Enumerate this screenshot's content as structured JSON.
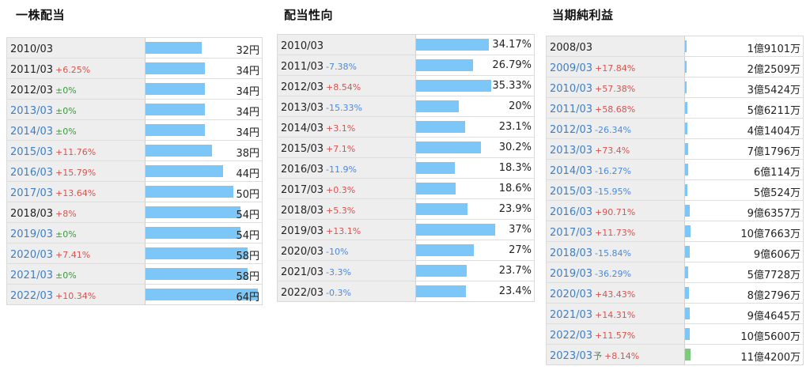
{
  "colors": {
    "bar": "#7cc6f8",
    "forecast_bar": "#7dc97d",
    "up": "#d9534f",
    "down": "#4a8ad9",
    "flat": "#3a9a3a",
    "link": "#3d7fc4"
  },
  "panels": [
    {
      "id": "dividend",
      "title": "一株配当",
      "scale_max": 64,
      "rows": [
        {
          "year": "2010/03",
          "change": "",
          "dir": "",
          "link": false,
          "value": "32円",
          "num": 32
        },
        {
          "year": "2011/03",
          "change": "+6.25%",
          "dir": "up",
          "link": false,
          "value": "34円",
          "num": 34
        },
        {
          "year": "2012/03",
          "change": "±0%",
          "dir": "flat",
          "link": false,
          "value": "34円",
          "num": 34
        },
        {
          "year": "2013/03",
          "change": "±0%",
          "dir": "flat",
          "link": true,
          "value": "34円",
          "num": 34
        },
        {
          "year": "2014/03",
          "change": "±0%",
          "dir": "flat",
          "link": true,
          "value": "34円",
          "num": 34
        },
        {
          "year": "2015/03",
          "change": "+11.76%",
          "dir": "up",
          "link": true,
          "value": "38円",
          "num": 38
        },
        {
          "year": "2016/03",
          "change": "+15.79%",
          "dir": "up",
          "link": true,
          "value": "44円",
          "num": 44
        },
        {
          "year": "2017/03",
          "change": "+13.64%",
          "dir": "up",
          "link": true,
          "value": "50円",
          "num": 50
        },
        {
          "year": "2018/03",
          "change": "+8%",
          "dir": "up",
          "link": false,
          "value": "54円",
          "num": 54
        },
        {
          "year": "2019/03",
          "change": "±0%",
          "dir": "flat",
          "link": true,
          "value": "54円",
          "num": 54
        },
        {
          "year": "2020/03",
          "change": "+7.41%",
          "dir": "up",
          "link": true,
          "value": "58円",
          "num": 58
        },
        {
          "year": "2021/03",
          "change": "±0%",
          "dir": "flat",
          "link": true,
          "value": "58円",
          "num": 58
        },
        {
          "year": "2022/03",
          "change": "+10.34%",
          "dir": "up",
          "link": true,
          "value": "64円",
          "num": 64
        }
      ]
    },
    {
      "id": "payout",
      "title": "配当性向",
      "scale_max": 50,
      "rows": [
        {
          "year": "2010/03",
          "change": "",
          "dir": "",
          "link": false,
          "value": "34.17%",
          "num": 34.17
        },
        {
          "year": "2011/03",
          "change": "-7.38%",
          "dir": "down",
          "link": false,
          "value": "26.79%",
          "num": 26.79
        },
        {
          "year": "2012/03",
          "change": "+8.54%",
          "dir": "up",
          "link": false,
          "value": "35.33%",
          "num": 35.33
        },
        {
          "year": "2013/03",
          "change": "-15.33%",
          "dir": "down",
          "link": false,
          "value": "20%",
          "num": 20
        },
        {
          "year": "2014/03",
          "change": "+3.1%",
          "dir": "up",
          "link": false,
          "value": "23.1%",
          "num": 23.1
        },
        {
          "year": "2015/03",
          "change": "+7.1%",
          "dir": "up",
          "link": false,
          "value": "30.2%",
          "num": 30.2
        },
        {
          "year": "2016/03",
          "change": "-11.9%",
          "dir": "down",
          "link": false,
          "value": "18.3%",
          "num": 18.3
        },
        {
          "year": "2017/03",
          "change": "+0.3%",
          "dir": "up",
          "link": false,
          "value": "18.6%",
          "num": 18.6
        },
        {
          "year": "2018/03",
          "change": "+5.3%",
          "dir": "up",
          "link": false,
          "value": "23.9%",
          "num": 23.9
        },
        {
          "year": "2019/03",
          "change": "+13.1%",
          "dir": "up",
          "link": false,
          "value": "37%",
          "num": 37
        },
        {
          "year": "2020/03",
          "change": "-10%",
          "dir": "down",
          "link": false,
          "value": "27%",
          "num": 27
        },
        {
          "year": "2021/03",
          "change": "-3.3%",
          "dir": "down",
          "link": false,
          "value": "23.7%",
          "num": 23.7
        },
        {
          "year": "2022/03",
          "change": "-0.3%",
          "dir": "down",
          "link": false,
          "value": "23.4%",
          "num": 23.4
        }
      ]
    },
    {
      "id": "net-income",
      "title": "当期純利益",
      "scale_max": 200000,
      "rows": [
        {
          "year": "2008/03",
          "suffix": "",
          "change": "",
          "dir": "",
          "link": false,
          "value": "1億9101万",
          "num": 19101
        },
        {
          "year": "2009/03",
          "suffix": "",
          "change": "+17.84%",
          "dir": "up",
          "link": true,
          "value": "2億2509万",
          "num": 22509
        },
        {
          "year": "2010/03",
          "suffix": "",
          "change": "+57.38%",
          "dir": "up",
          "link": true,
          "value": "3億5424万",
          "num": 35424
        },
        {
          "year": "2011/03",
          "suffix": "",
          "change": "+58.68%",
          "dir": "up",
          "link": true,
          "value": "5億6211万",
          "num": 56211
        },
        {
          "year": "2012/03",
          "suffix": "",
          "change": "-26.34%",
          "dir": "down",
          "link": true,
          "value": "4億1404万",
          "num": 41404
        },
        {
          "year": "2013/03",
          "suffix": "",
          "change": "+73.4%",
          "dir": "up",
          "link": true,
          "value": "7億1796万",
          "num": 71796
        },
        {
          "year": "2014/03",
          "suffix": "",
          "change": "-16.27%",
          "dir": "down",
          "link": true,
          "value": "6億114万",
          "num": 60114
        },
        {
          "year": "2015/03",
          "suffix": "",
          "change": "-15.95%",
          "dir": "down",
          "link": true,
          "value": "5億524万",
          "num": 50524
        },
        {
          "year": "2016/03",
          "suffix": "",
          "change": "+90.71%",
          "dir": "up",
          "link": true,
          "value": "9億6357万",
          "num": 96357
        },
        {
          "year": "2017/03",
          "suffix": "",
          "change": "+11.73%",
          "dir": "up",
          "link": true,
          "value": "10億7663万",
          "num": 107663
        },
        {
          "year": "2018/03",
          "suffix": "",
          "change": "-15.84%",
          "dir": "down",
          "link": true,
          "value": "9億606万",
          "num": 90606
        },
        {
          "year": "2019/03",
          "suffix": "",
          "change": "-36.29%",
          "dir": "down",
          "link": true,
          "value": "5億7728万",
          "num": 57728
        },
        {
          "year": "2020/03",
          "suffix": "",
          "change": "+43.43%",
          "dir": "up",
          "link": true,
          "value": "8億2796万",
          "num": 82796
        },
        {
          "year": "2021/03",
          "suffix": "",
          "change": "+14.31%",
          "dir": "up",
          "link": true,
          "value": "9億4645万",
          "num": 94645
        },
        {
          "year": "2022/03",
          "suffix": "",
          "change": "+11.57%",
          "dir": "up",
          "link": true,
          "value": "10億5600万",
          "num": 105600
        },
        {
          "year": "2023/03",
          "suffix": "予",
          "change": "+8.14%",
          "dir": "up",
          "link": true,
          "value": "11億4200万",
          "num": 114200,
          "forecast": true
        }
      ]
    }
  ]
}
